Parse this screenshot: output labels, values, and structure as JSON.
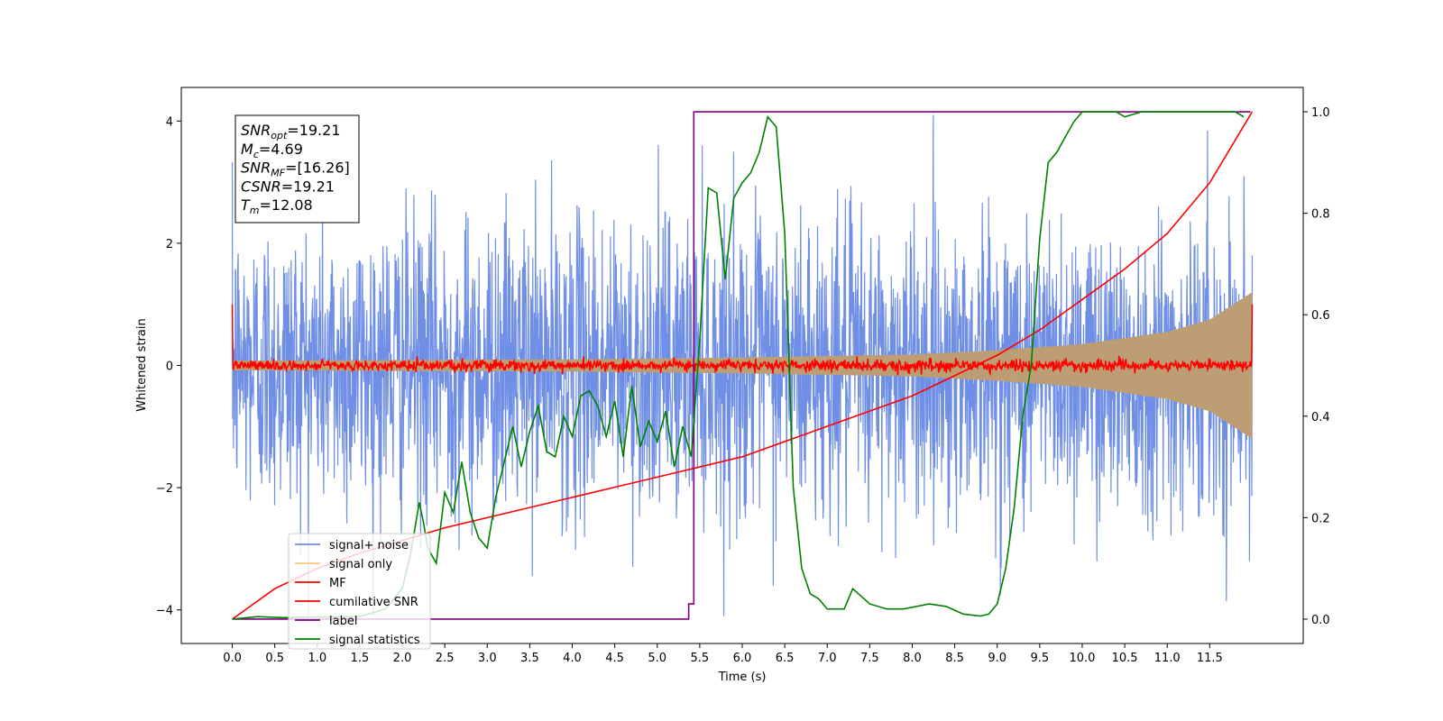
{
  "chart_data": {
    "type": "line",
    "xlabel": "Time (s)",
    "ylabel_left": "Whitened strain",
    "ylabel_right": "",
    "xlim": [
      -0.6,
      12.6
    ],
    "ylim_left": [
      -4.55,
      4.55
    ],
    "ylim_right": [
      -0.048,
      1.048
    ],
    "x_ticks": [
      0.0,
      0.5,
      1.0,
      1.5,
      2.0,
      2.5,
      3.0,
      3.5,
      4.0,
      4.5,
      5.0,
      5.5,
      6.0,
      6.5,
      7.0,
      7.5,
      8.0,
      8.5,
      9.0,
      9.5,
      10.0,
      10.5,
      11.0,
      11.5
    ],
    "x_tick_labels": [
      "0.0",
      "0.5",
      "1.0",
      "1.5",
      "2.0",
      "2.5",
      "3.0",
      "3.5",
      "4.0",
      "4.5",
      "5.0",
      "5.5",
      "6.0",
      "6.5",
      "7.0",
      "7.5",
      "8.0",
      "8.5",
      "9.0",
      "9.5",
      "10.0",
      "10.5",
      "11.0",
      "11.5"
    ],
    "y_ticks_left": [
      -4,
      -2,
      0,
      2,
      4
    ],
    "y_tick_labels_left": [
      "−4",
      "−2",
      "0",
      "2",
      "4"
    ],
    "y_ticks_right": [
      0.0,
      0.2,
      0.4,
      0.6,
      0.8,
      1.0
    ],
    "y_tick_labels_right": [
      "0.0",
      "0.2",
      "0.4",
      "0.6",
      "0.8",
      "1.0"
    ],
    "grid": false,
    "legend_position": "lower-left",
    "series": [
      {
        "name": "signal+ noise",
        "axis": "left",
        "color": "#6f8fe6",
        "kind": "noise",
        "note_values": {
          "x_range": [
            0.0,
            12.0
          ],
          "typical_amplitude": 1.2,
          "max_abs": 4.1
        }
      },
      {
        "name": "signal only",
        "axis": "left",
        "color": "#ffc87a",
        "kind": "chirp",
        "envelope": {
          "x": [
            0,
            2,
            4,
            6,
            8,
            9,
            10,
            11,
            11.5,
            12.0
          ],
          "amp": [
            0.08,
            0.09,
            0.1,
            0.13,
            0.18,
            0.25,
            0.35,
            0.55,
            0.75,
            1.2
          ]
        }
      },
      {
        "name": "MF",
        "axis": "left",
        "color": "#ff0000",
        "kind": "mf",
        "values": {
          "baseline": 0.0,
          "noise_amplitude": 0.08,
          "start": 1.0,
          "end": 1.0
        }
      },
      {
        "name": "cumilative SNR",
        "axis": "right",
        "color": "#ff0000",
        "x": [
          0,
          0.5,
          1,
          1.5,
          2,
          2.5,
          3,
          3.5,
          4,
          4.5,
          5,
          5.5,
          6,
          6.5,
          7,
          7.5,
          8,
          8.5,
          9,
          9.5,
          10,
          10.5,
          11,
          11.5,
          12.0
        ],
        "y": [
          0.0,
          0.06,
          0.1,
          0.13,
          0.155,
          0.18,
          0.2,
          0.22,
          0.24,
          0.26,
          0.28,
          0.3,
          0.32,
          0.35,
          0.38,
          0.41,
          0.44,
          0.48,
          0.52,
          0.57,
          0.63,
          0.69,
          0.76,
          0.86,
          1.0
        ]
      },
      {
        "name": "label",
        "axis": "right",
        "color": "#800080",
        "x": [
          0.0,
          5.37,
          5.37,
          5.43,
          5.43,
          11.98
        ],
        "y": [
          0.0,
          0.0,
          0.03,
          0.03,
          1.0,
          1.0
        ]
      },
      {
        "name": "signal statistics",
        "axis": "right",
        "color": "#008000",
        "x": [
          0,
          0.3,
          0.6,
          1.0,
          1.5,
          1.8,
          2.0,
          2.1,
          2.2,
          2.25,
          2.3,
          2.4,
          2.5,
          2.6,
          2.7,
          2.8,
          2.9,
          3.0,
          3.1,
          3.2,
          3.3,
          3.4,
          3.5,
          3.6,
          3.7,
          3.8,
          3.9,
          4.0,
          4.1,
          4.2,
          4.3,
          4.4,
          4.5,
          4.6,
          4.7,
          4.8,
          4.9,
          5.0,
          5.1,
          5.2,
          5.3,
          5.4,
          5.5,
          5.6,
          5.7,
          5.8,
          5.9,
          6.0,
          6.1,
          6.2,
          6.3,
          6.4,
          6.5,
          6.6,
          6.7,
          6.8,
          6.9,
          7.0,
          7.2,
          7.3,
          7.5,
          7.7,
          7.9,
          8.2,
          8.4,
          8.6,
          8.8,
          8.9,
          9.0,
          9.1,
          9.2,
          9.3,
          9.4,
          9.5,
          9.6,
          9.7,
          9.8,
          9.9,
          10.0,
          10.2,
          10.4,
          10.5,
          10.7,
          10.9,
          11.2,
          11.5,
          11.8,
          11.9
        ],
        "y": [
          0.0,
          0.005,
          0.003,
          0.004,
          0.005,
          0.02,
          0.06,
          0.13,
          0.23,
          0.19,
          0.14,
          0.11,
          0.25,
          0.21,
          0.31,
          0.21,
          0.16,
          0.14,
          0.24,
          0.31,
          0.38,
          0.3,
          0.37,
          0.42,
          0.33,
          0.32,
          0.4,
          0.36,
          0.44,
          0.45,
          0.42,
          0.36,
          0.43,
          0.32,
          0.46,
          0.34,
          0.39,
          0.35,
          0.41,
          0.3,
          0.38,
          0.32,
          0.55,
          0.85,
          0.84,
          0.67,
          0.83,
          0.86,
          0.88,
          0.92,
          0.99,
          0.97,
          0.76,
          0.26,
          0.1,
          0.05,
          0.04,
          0.02,
          0.02,
          0.06,
          0.03,
          0.02,
          0.02,
          0.03,
          0.025,
          0.01,
          0.006,
          0.01,
          0.03,
          0.1,
          0.22,
          0.4,
          0.5,
          0.75,
          0.9,
          0.92,
          0.95,
          0.98,
          1.0,
          1.0,
          1.0,
          0.99,
          1.0,
          1.0,
          1.0,
          1.0,
          1.0,
          0.99
        ]
      }
    ],
    "annotation": {
      "lines": [
        {
          "main": "SNR",
          "sub": "opt",
          "value": "=19.21"
        },
        {
          "main": "M",
          "sub": "c",
          "value": "=4.69"
        },
        {
          "main": "SNR",
          "sub": "MF",
          "value": "=[16.26]"
        },
        {
          "main": "CSNR",
          "sub": "",
          "value": "=19.21"
        },
        {
          "main": "T",
          "sub": "m",
          "value": "=12.08"
        }
      ]
    }
  }
}
